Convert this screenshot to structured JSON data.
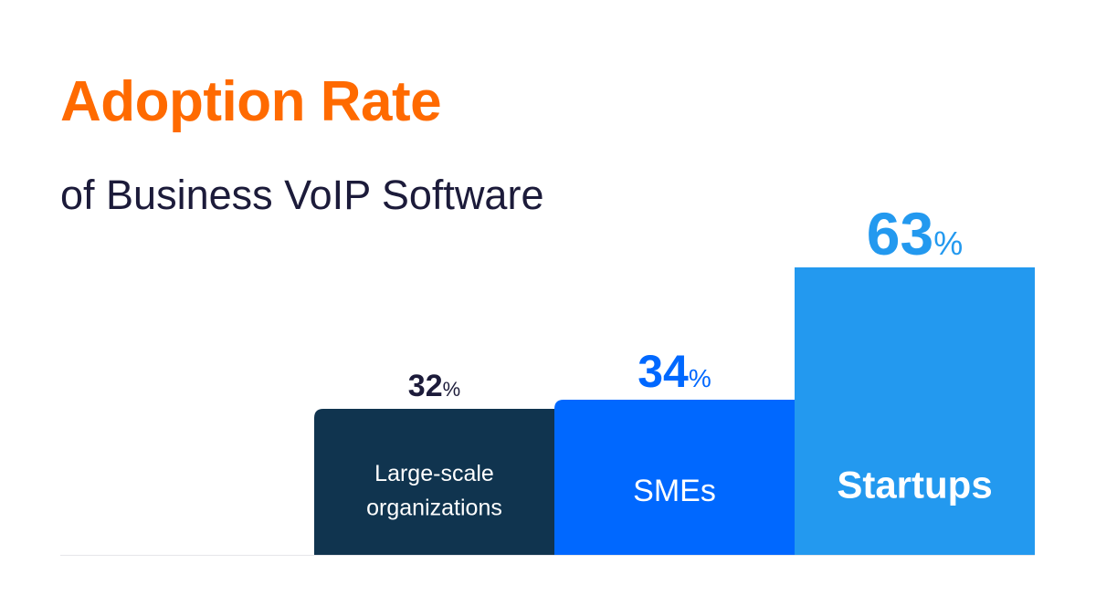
{
  "chart_data": {
    "type": "bar",
    "title": "Adoption Rate",
    "subtitle": "of Business VoIP Software",
    "categories": [
      "Large-scale organizations",
      "SMEs",
      "Startups"
    ],
    "category_lines": [
      [
        "Large-scale",
        "organizations"
      ],
      [
        "SMEs"
      ],
      [
        "Startups"
      ]
    ],
    "values": [
      32,
      34,
      63
    ],
    "value_labels": [
      "32",
      "34",
      "63"
    ],
    "unit": "%",
    "ylim": [
      0,
      63
    ],
    "grid": false,
    "colors": [
      "#10344f",
      "#0068ff",
      "#2399ef"
    ],
    "value_label_colors": [
      "#1c1b3a",
      "#0068ff",
      "#2399ef"
    ]
  }
}
